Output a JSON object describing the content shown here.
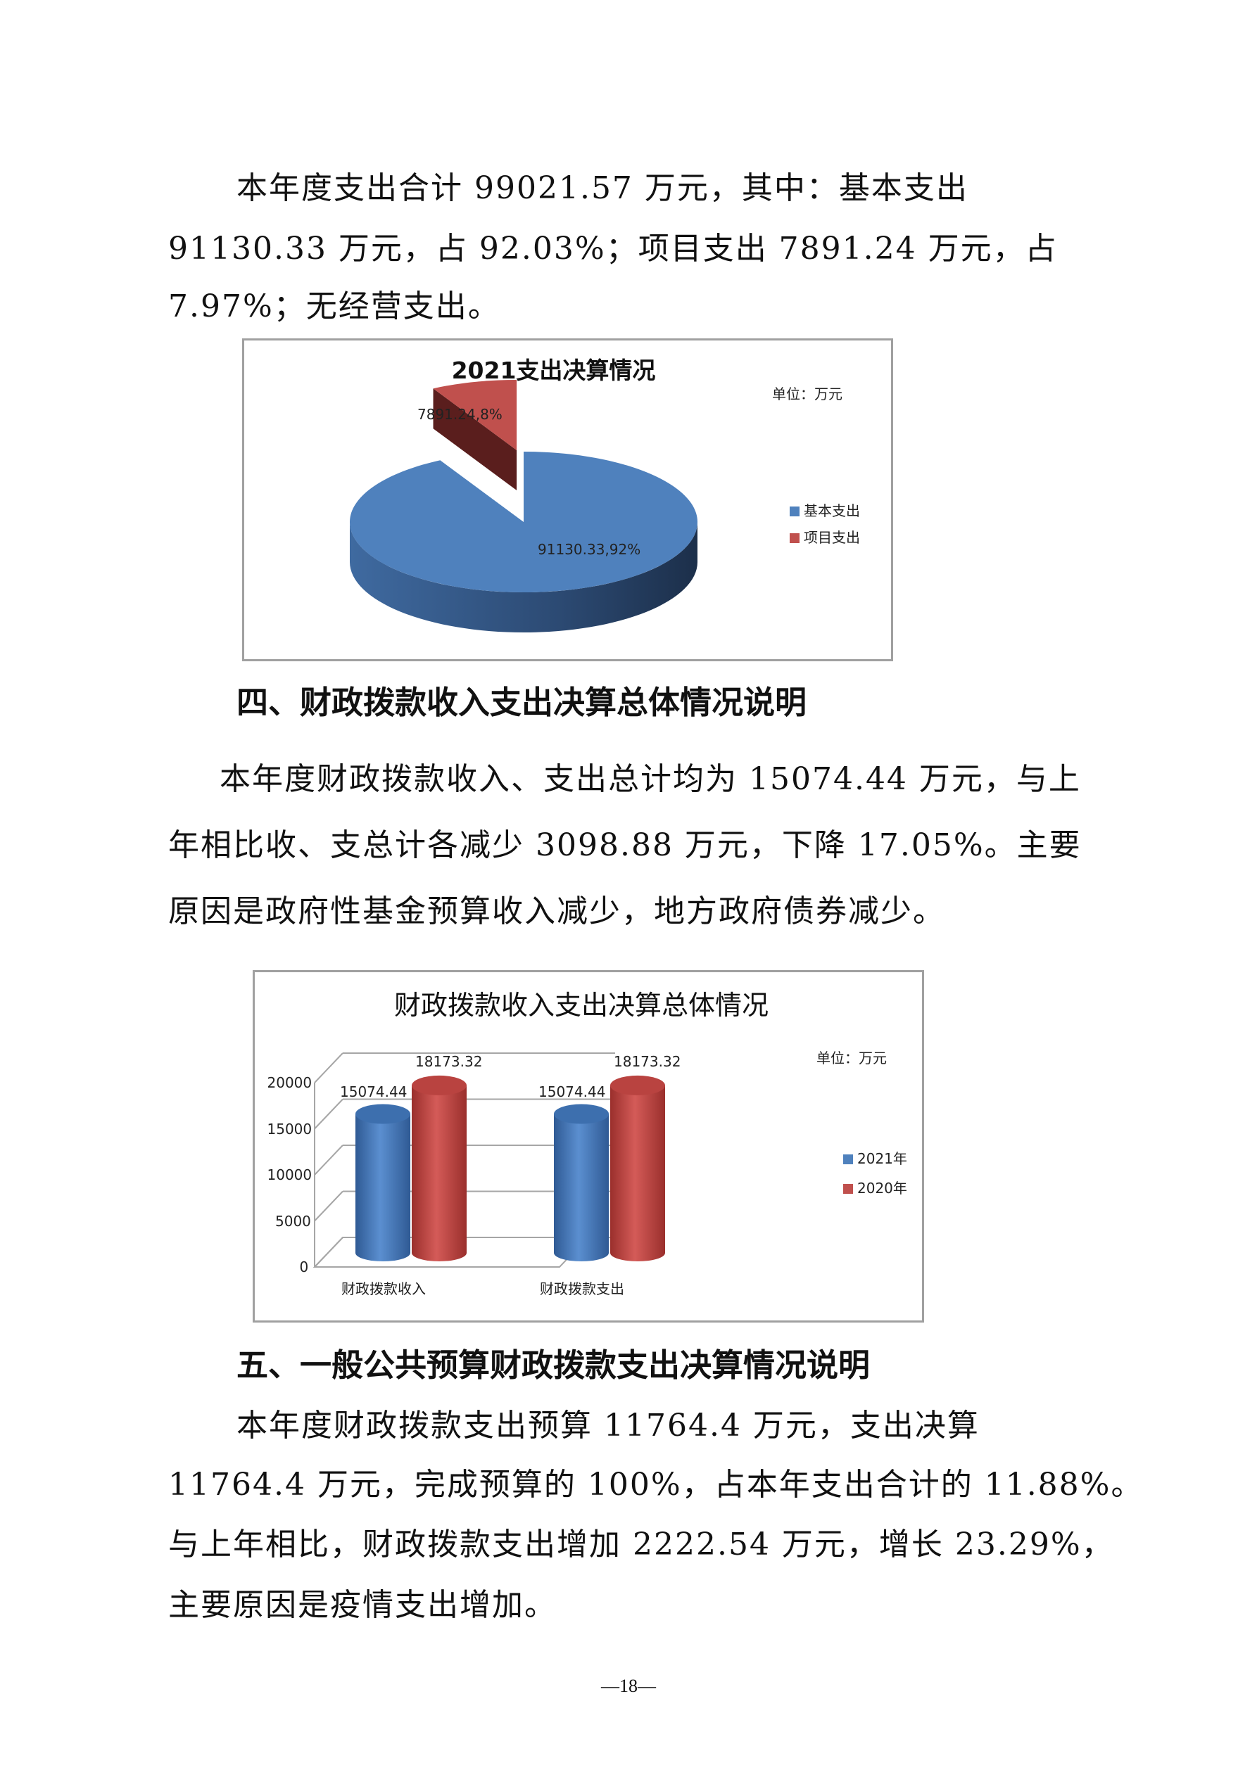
{
  "paragraph1": [
    "本年度支出合计 99021.57 万元，其中：基本支出",
    "91130.33 万元，占 92.03%；项目支出 7891.24 万元，占",
    "7.97%；无经营支出。"
  ],
  "heading4": "四、财政拨款收入支出决算总体情况说明",
  "paragraph2": [
    "本年度财政拨款收入、支出总计均为 15074.44 万元，与上",
    "年相比收、支总计各减少 3098.88 万元，下降 17.05%。主要",
    "原因是政府性基金预算收入减少，地方政府债券减少。"
  ],
  "heading5": "五、一般公共预算财政拨款支出决算情况说明",
  "paragraph3": [
    "本年度财政拨款支出预算 11764.4 万元，支出决算",
    "11764.4 万元，完成预算的 100%，占本年支出合计的 11.88%。",
    "与上年相比，财政拨款支出增加 2222.54 万元，增长 23.29%，",
    "主要原因是疫情支出增加。"
  ],
  "page_number": "—18—",
  "chart_data": [
    {
      "type": "pie",
      "style": "3d-exploded",
      "title": "2021支出决算情况",
      "unit": "单位：万元",
      "slices": [
        {
          "name": "基本支出",
          "value": 91130.33,
          "label": "91130.33,92%",
          "color": "#4f81bd"
        },
        {
          "name": "项目支出",
          "value": 7891.24,
          "label": "7891.24,8%",
          "color": "#c0504d"
        }
      ],
      "legend": "right"
    },
    {
      "type": "bar",
      "style": "3d-cylinder",
      "title": "财政拨款收入支出决算总体情况",
      "unit": "单位：万元",
      "categories": [
        "财政拨款收入",
        "财政拨款支出"
      ],
      "series": [
        {
          "name": "2021年",
          "values": [
            15074.44,
            15074.44
          ],
          "labels": [
            "15074.44",
            "15074.44"
          ],
          "color": "#4f81bd"
        },
        {
          "name": "2020年",
          "values": [
            18173.32,
            18173.32
          ],
          "labels": [
            "18173.32",
            "18173.32"
          ],
          "color": "#c0504d"
        }
      ],
      "yticks": [
        "0",
        "5000",
        "10000",
        "15000",
        "20000"
      ],
      "ylim": [
        0,
        20000
      ],
      "grid": true,
      "legend": "right"
    }
  ]
}
